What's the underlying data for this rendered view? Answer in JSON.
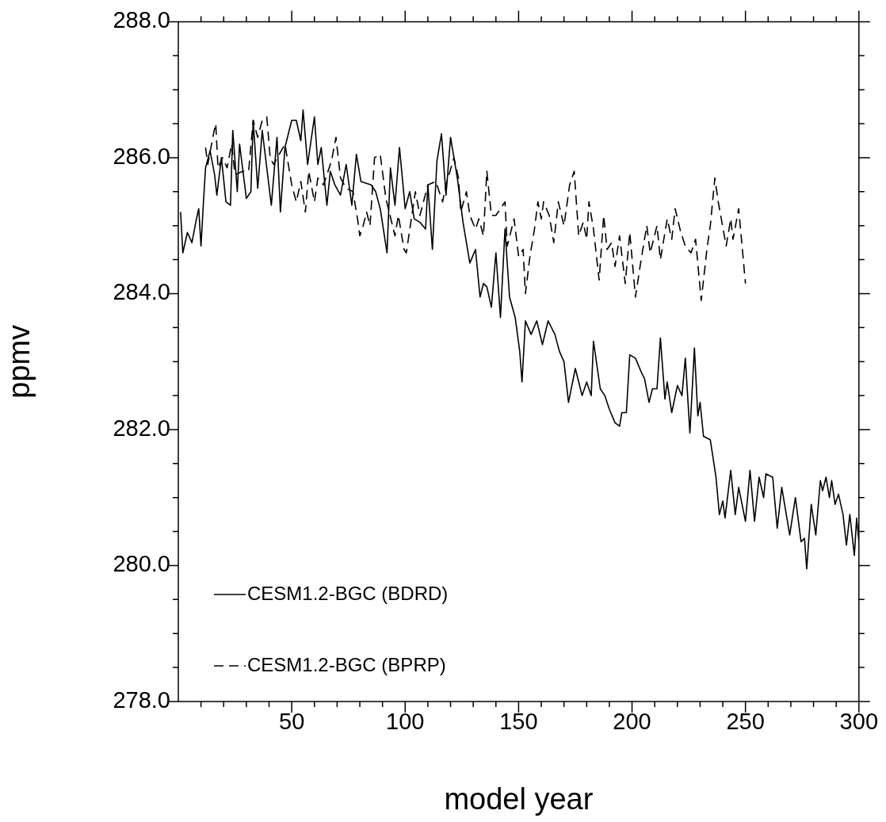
{
  "chart_data": {
    "type": "line",
    "xlabel": "model year",
    "ylabel": "ppmv",
    "legend": "bottom left",
    "grid": false,
    "marker": "none",
    "xlim": [
      0,
      300
    ],
    "ylim": [
      278,
      288
    ],
    "xticks": [
      {
        "value": 10,
        "label": null
      },
      {
        "value": 20,
        "label": null
      },
      {
        "value": 30,
        "label": null
      },
      {
        "value": 40,
        "label": null
      },
      50,
      {
        "value": 60,
        "label": null
      },
      {
        "value": 70,
        "label": null
      },
      {
        "value": 80,
        "label": null
      },
      {
        "value": 90,
        "label": null
      },
      100,
      {
        "value": 110,
        "label": null
      },
      {
        "value": 120,
        "label": null
      },
      {
        "value": 130,
        "label": null
      },
      {
        "value": 140,
        "label": null
      },
      150,
      {
        "value": 160,
        "label": null
      },
      {
        "value": 170,
        "label": null
      },
      {
        "value": 180,
        "label": null
      },
      {
        "value": 190,
        "label": null
      },
      200,
      {
        "value": 210,
        "label": null
      },
      {
        "value": 220,
        "label": null
      },
      {
        "value": 230,
        "label": null
      },
      {
        "value": 240,
        "label": null
      },
      250,
      {
        "value": 260,
        "label": null
      },
      {
        "value": 270,
        "label": null
      },
      {
        "value": 280,
        "label": null
      },
      {
        "value": 290,
        "label": null
      },
      300
    ],
    "yticks": [
      {
        "value": 278,
        "label": "278.0"
      },
      {
        "value": 278.5,
        "label": null
      },
      {
        "value": 279,
        "label": null
      },
      {
        "value": 279.5,
        "label": null
      },
      {
        "value": 280,
        "label": "280.0"
      },
      {
        "value": 280.5,
        "label": null
      },
      {
        "value": 281,
        "label": null
      },
      {
        "value": 281.5,
        "label": null
      },
      {
        "value": 282,
        "label": "282.0"
      },
      {
        "value": 282.5,
        "label": null
      },
      {
        "value": 283,
        "label": null
      },
      {
        "value": 283.5,
        "label": null
      },
      {
        "value": 284,
        "label": "284.0"
      },
      {
        "value": 284.5,
        "label": null
      },
      {
        "value": 285,
        "label": null
      },
      {
        "value": 285.5,
        "label": null
      },
      {
        "value": 286,
        "label": "286.0"
      },
      {
        "value": 286.5,
        "label": null
      },
      {
        "value": 287,
        "label": null
      },
      {
        "value": 287.5,
        "label": null
      },
      {
        "value": 288,
        "label": "288.0"
      }
    ],
    "series": [
      {
        "name": "CESM1.2-BGC (BDRD)",
        "color": "#000000",
        "line_style": "solid",
        "x": [
          1,
          2,
          4,
          6,
          8,
          9,
          10,
          11,
          12,
          14,
          16,
          17,
          19,
          21,
          23,
          24,
          26,
          27,
          30,
          32,
          33,
          35,
          37,
          41,
          43.5,
          45,
          47,
          50,
          52,
          54,
          55,
          57,
          60,
          61.5,
          63,
          65.5,
          67,
          69,
          71.5,
          74,
          76.5,
          78.5,
          80.5,
          85,
          87,
          89,
          92,
          93.5,
          95.5,
          97.5,
          100,
          102,
          104,
          106.5,
          109,
          110,
          112,
          114,
          116,
          118,
          120,
          123,
          125.5,
          128.5,
          131,
          133,
          134.5,
          136,
          138,
          140,
          142,
          144,
          146,
          148.5,
          150.5,
          151.5,
          153,
          155.5,
          158,
          160.5,
          163,
          166,
          168,
          170,
          172,
          175,
          178,
          180,
          182,
          183,
          186,
          188,
          190,
          192.5,
          194.5,
          195.5,
          197.5,
          199,
          201.5,
          204,
          205.5,
          207.5,
          209,
          211,
          212.5,
          214.5,
          215.5,
          217.5,
          220,
          222,
          223.5,
          225.5,
          227.5,
          229,
          230,
          231.5,
          234.5,
          237,
          238.5,
          240,
          241,
          243.5,
          245.5,
          247,
          250,
          252,
          254,
          256,
          258,
          259,
          262,
          264,
          266,
          269.5,
          272,
          274.5,
          276,
          277,
          279,
          281,
          283,
          284,
          285.5,
          287,
          288,
          289.5,
          291,
          293,
          294.5,
          296,
          298,
          299,
          300
        ],
        "values": [
          285.2,
          284.6,
          284.9,
          284.75,
          285.1,
          285.25,
          284.7,
          285.3,
          285.85,
          286.1,
          285.75,
          285.45,
          286.0,
          285.35,
          285.3,
          286.4,
          285.5,
          286.2,
          285.4,
          285.5,
          286.55,
          285.55,
          286.4,
          285.3,
          286.3,
          285.2,
          286.15,
          286.55,
          286.55,
          286.25,
          286.7,
          285.9,
          286.6,
          285.9,
          286.15,
          285.3,
          285.8,
          285.6,
          285.45,
          285.9,
          285.3,
          286.05,
          285.65,
          285.6,
          285.5,
          285.25,
          284.6,
          285.85,
          285.3,
          286.15,
          285.25,
          285.5,
          285.1,
          285.05,
          284.95,
          285.6,
          284.65,
          285.95,
          286.35,
          285.45,
          286.3,
          285.7,
          285.05,
          284.45,
          284.65,
          283.95,
          284.15,
          284.1,
          283.8,
          284.6,
          283.65,
          284.95,
          283.95,
          283.65,
          283.15,
          282.7,
          283.6,
          283.4,
          283.6,
          283.25,
          283.6,
          283.4,
          283.15,
          283.0,
          282.4,
          282.9,
          282.5,
          282.7,
          282.5,
          283.3,
          282.6,
          282.5,
          282.3,
          282.1,
          282.05,
          282.25,
          282.25,
          283.1,
          283.05,
          282.85,
          282.75,
          282.4,
          282.6,
          282.6,
          283.35,
          282.45,
          282.7,
          282.25,
          282.65,
          282.5,
          283.05,
          281.95,
          283.2,
          282.2,
          282.4,
          281.9,
          281.85,
          281.3,
          280.75,
          280.95,
          280.7,
          281.4,
          280.75,
          281.15,
          280.65,
          281.4,
          280.65,
          281.3,
          281.0,
          281.35,
          281.3,
          280.55,
          281.15,
          280.45,
          281.0,
          280.35,
          280.4,
          279.95,
          280.9,
          280.45,
          281.25,
          281.1,
          281.3,
          281.0,
          281.25,
          280.9,
          281.05,
          280.75,
          280.3,
          280.75,
          280.15,
          280.7,
          280.35
        ]
      },
      {
        "name": "CESM1.2-BGC (BPRP)",
        "color": "#000000",
        "line_style": "dashed",
        "x": [
          12,
          13,
          15.5,
          16.5,
          17.5,
          19.5,
          21.5,
          23.5,
          25,
          28.5,
          31,
          33,
          35,
          37,
          39,
          40.5,
          42,
          47,
          50,
          52,
          54,
          56,
          57.5,
          60,
          61.5,
          64,
          67.5,
          69.5,
          71.5,
          74,
          77,
          79,
          80,
          81.5,
          83,
          84.5,
          86.5,
          89,
          91.5,
          95.5,
          97,
          99.5,
          100.5,
          104.5,
          106.5,
          110,
          113.5,
          116.5,
          118,
          121.5,
          123.5,
          124.5,
          127,
          128.5,
          131,
          132.5,
          134.5,
          136,
          138,
          140,
          144,
          145,
          148,
          150,
          152,
          153,
          155,
          157,
          158.5,
          160,
          161,
          163.5,
          165.5,
          167.5,
          170,
          172.5,
          174.5,
          176.5,
          178.5,
          180,
          181,
          183,
          184.5,
          185.5,
          187.5,
          189,
          191,
          192.5,
          194.5,
          197,
          199,
          201.5,
          204,
          206.5,
          208,
          211,
          212.5,
          215.5,
          217.5,
          219,
          221.5,
          223.5,
          226,
          228,
          230.5,
          233,
          234.5,
          236.5,
          238,
          241.5,
          243.5,
          244.5,
          247,
          250
        ],
        "values": [
          286.15,
          285.9,
          286.35,
          286.5,
          285.85,
          286.0,
          285.85,
          286.2,
          285.75,
          285.8,
          285.8,
          286.55,
          286.3,
          286.55,
          286.6,
          286.0,
          285.9,
          286.2,
          285.6,
          285.35,
          285.65,
          285.2,
          285.8,
          285.35,
          285.7,
          285.6,
          285.95,
          286.3,
          285.7,
          285.55,
          285.5,
          285.1,
          284.85,
          285.0,
          285.2,
          285.0,
          286.0,
          286.05,
          285.4,
          284.85,
          285.15,
          284.65,
          284.6,
          285.5,
          285.15,
          285.6,
          285.65,
          285.35,
          285.6,
          286.0,
          285.7,
          285.2,
          285.5,
          285.15,
          284.95,
          285.1,
          284.85,
          285.8,
          285.15,
          285.15,
          285.35,
          284.7,
          285.1,
          284.55,
          284.65,
          284.0,
          284.55,
          284.95,
          285.35,
          285.1,
          285.35,
          285.15,
          284.75,
          285.35,
          285.0,
          285.6,
          285.8,
          284.85,
          285.05,
          284.8,
          285.35,
          284.95,
          284.5,
          284.2,
          285.15,
          284.65,
          284.75,
          284.4,
          284.85,
          284.15,
          284.9,
          283.95,
          284.5,
          285.0,
          284.6,
          285.0,
          284.5,
          285.1,
          284.8,
          285.25,
          284.9,
          284.7,
          284.6,
          284.8,
          283.9,
          284.65,
          285.0,
          285.7,
          285.35,
          284.7,
          285.1,
          284.8,
          285.25,
          284.15
        ]
      }
    ]
  }
}
